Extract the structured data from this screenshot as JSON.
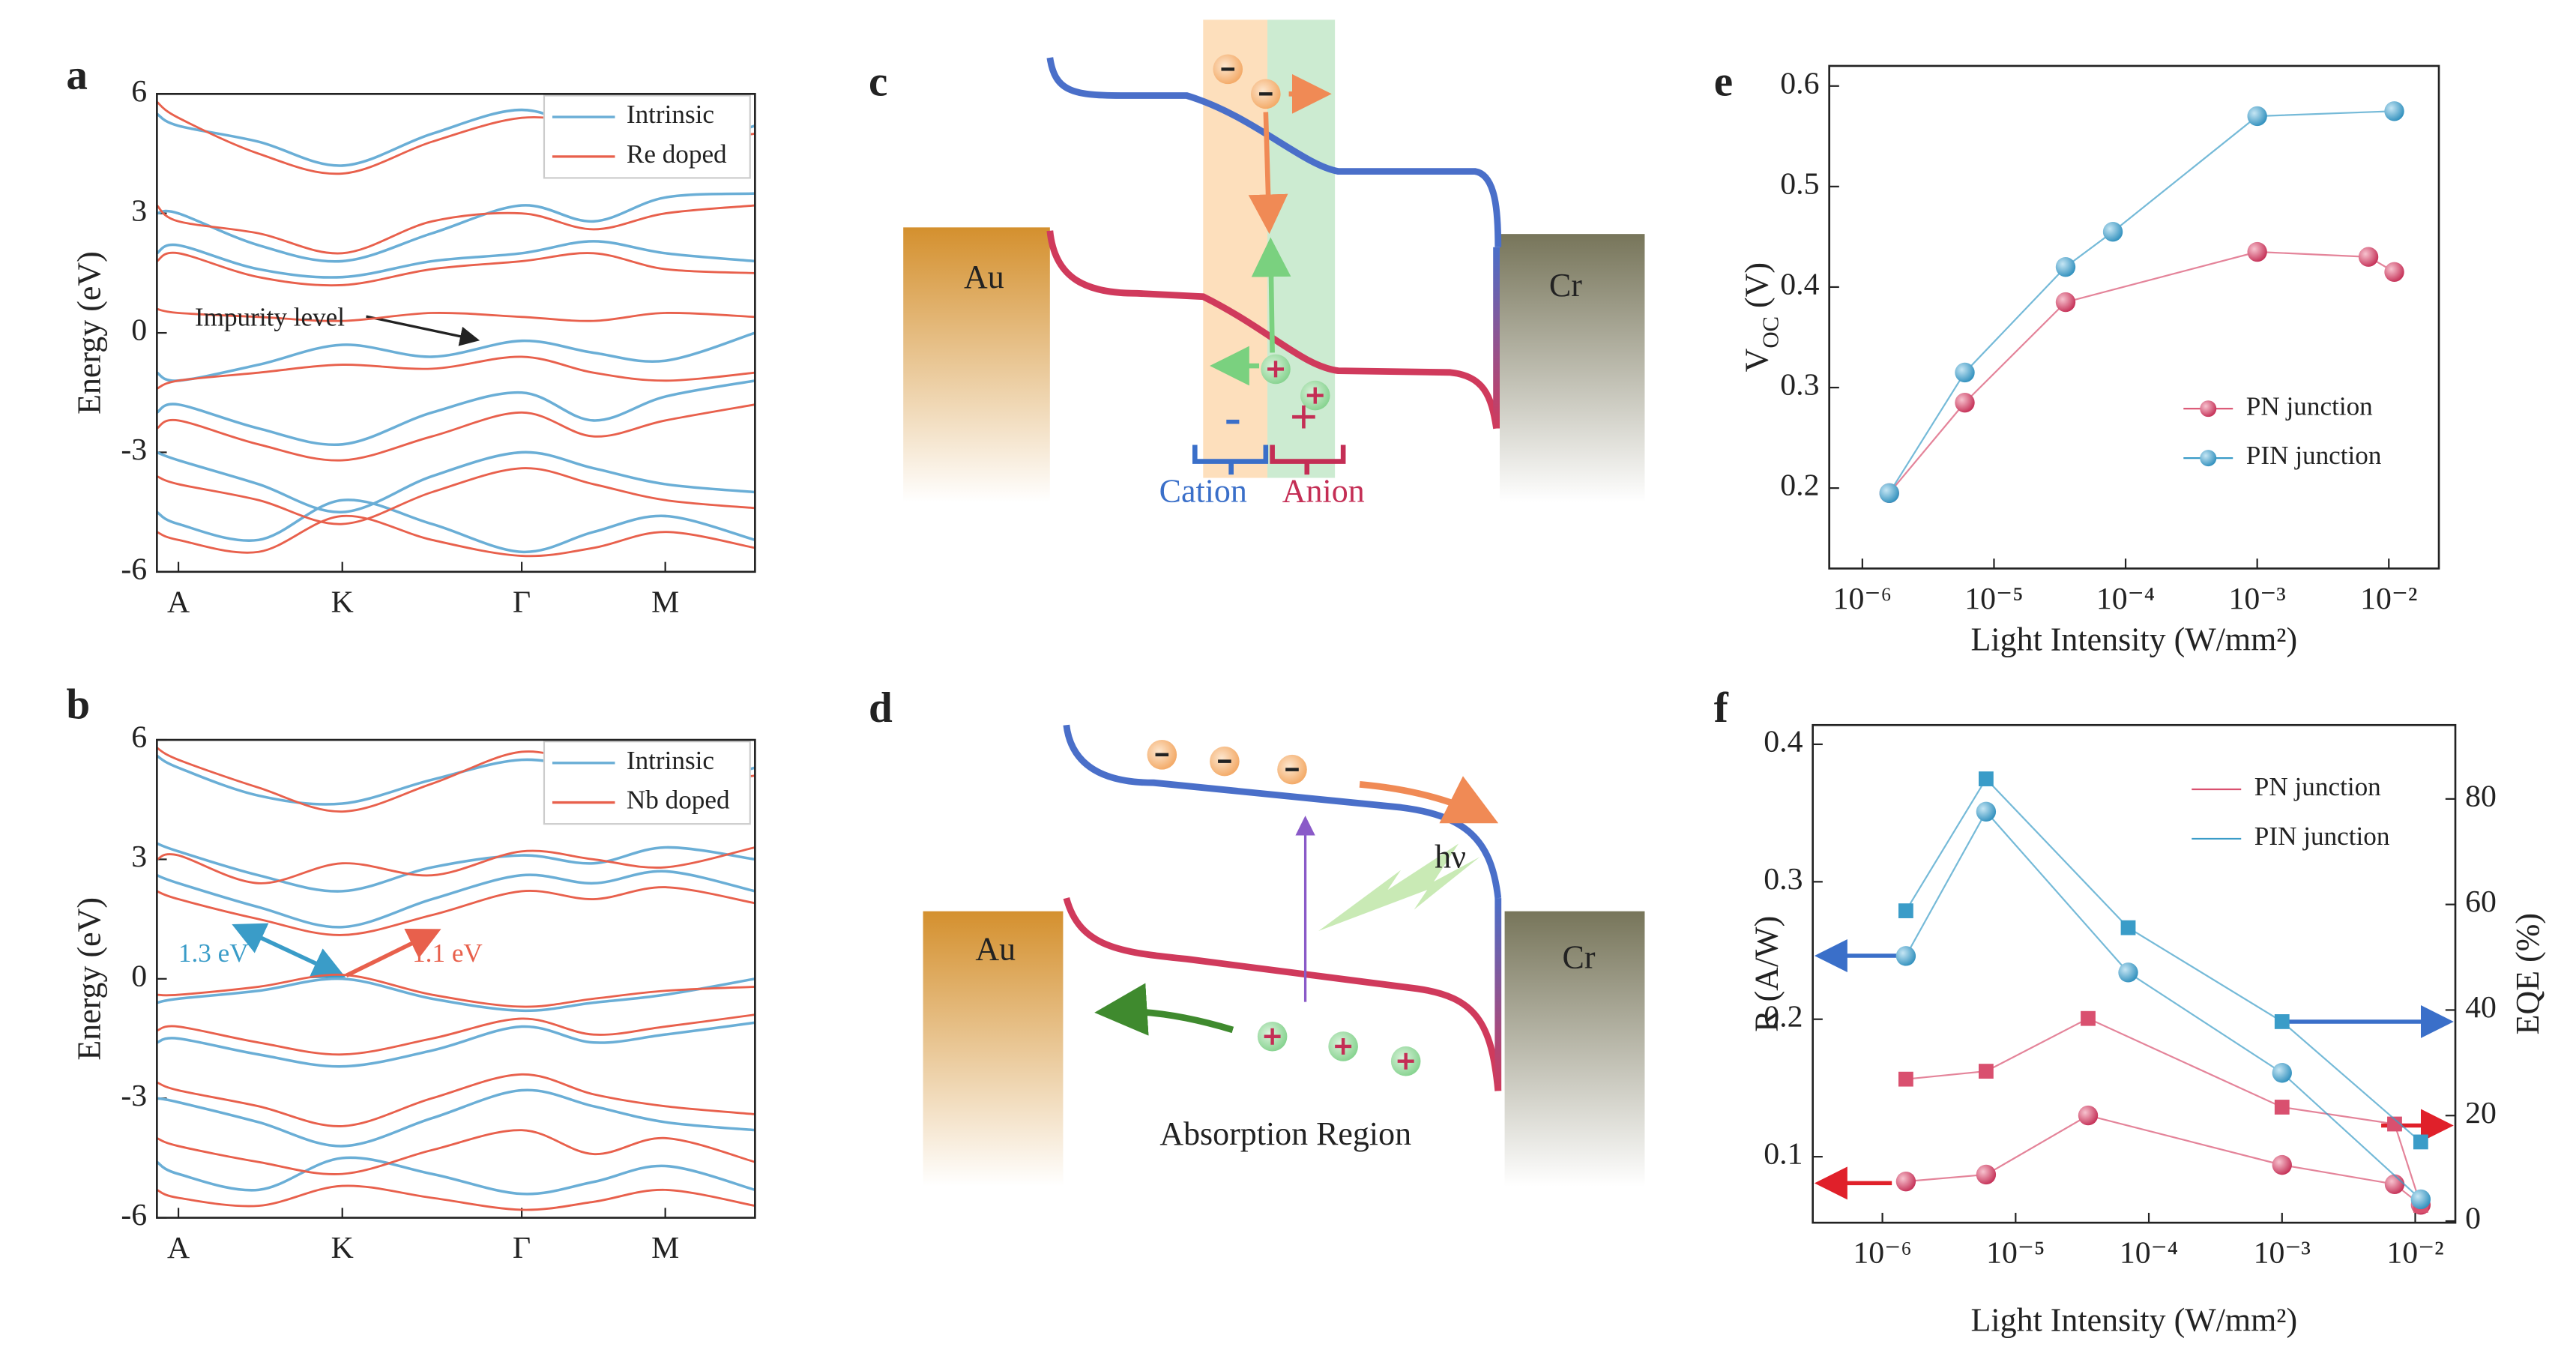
{
  "chart_data": [
    {
      "label": "a",
      "type": "bands",
      "ylabel": "Energy (eV)",
      "ylim": [
        -6,
        6
      ],
      "yticks": [
        -6,
        -3,
        0,
        3,
        6
      ],
      "xlim": [
        0,
        1
      ],
      "xticks": [
        {
          "value": 0.036,
          "label": "A"
        },
        {
          "value": 0.31,
          "label": "K"
        },
        {
          "value": 0.61,
          "label": "Γ"
        },
        {
          "value": 0.85,
          "label": "M"
        }
      ],
      "x": [
        0,
        0.036,
        0.17,
        0.31,
        0.46,
        0.61,
        0.73,
        0.85,
        1
      ],
      "legend": "upper right",
      "series": [
        {
          "name": "Intrinsic",
          "color": "#6aaed6",
          "bands": [
            [
              5.5,
              5.2,
              4.8,
              4.2,
              5.0,
              5.6,
              5.0,
              4.6,
              5.2
            ],
            [
              3.0,
              3.0,
              2.2,
              1.8,
              2.5,
              3.2,
              2.8,
              3.4,
              3.5
            ],
            [
              2.0,
              2.2,
              1.6,
              1.4,
              1.8,
              2.0,
              2.3,
              2.0,
              1.8
            ],
            [
              -1.0,
              -1.2,
              -0.8,
              -0.3,
              -0.6,
              -0.2,
              -0.5,
              -0.7,
              0.0
            ],
            [
              -2.0,
              -1.8,
              -2.4,
              -2.8,
              -2.0,
              -1.5,
              -2.2,
              -1.6,
              -1.2
            ],
            [
              -3.0,
              -3.2,
              -3.8,
              -4.5,
              -3.6,
              -3.0,
              -3.4,
              -3.8,
              -4.0
            ],
            [
              -4.5,
              -4.8,
              -5.2,
              -4.2,
              -4.8,
              -5.5,
              -5.0,
              -4.6,
              -5.2
            ]
          ]
        },
        {
          "name": "Re doped",
          "color": "#e8604c",
          "bands": [
            [
              5.8,
              5.4,
              4.5,
              4.0,
              4.8,
              5.4,
              5.2,
              4.8,
              5.0
            ],
            [
              3.2,
              2.8,
              2.5,
              2.0,
              2.8,
              3.0,
              2.6,
              3.0,
              3.2
            ],
            [
              1.8,
              2.0,
              1.4,
              1.2,
              1.6,
              1.8,
              2.0,
              1.6,
              1.5
            ],
            [
              0.6,
              0.5,
              0.4,
              0.3,
              0.5,
              0.4,
              0.3,
              0.5,
              0.4
            ],
            [
              -1.4,
              -1.2,
              -1.0,
              -0.8,
              -0.9,
              -0.6,
              -1.0,
              -1.2,
              -1.0
            ],
            [
              -2.4,
              -2.2,
              -2.8,
              -3.2,
              -2.6,
              -2.0,
              -2.6,
              -2.2,
              -1.8
            ],
            [
              -3.6,
              -3.8,
              -4.2,
              -4.8,
              -4.0,
              -3.4,
              -3.8,
              -4.2,
              -4.4
            ],
            [
              -5.0,
              -5.2,
              -5.5,
              -4.6,
              -5.2,
              -5.6,
              -5.4,
              -5.0,
              -5.4
            ]
          ]
        }
      ],
      "annotations": [
        "Impurity level"
      ]
    },
    {
      "label": "b",
      "type": "bands",
      "ylabel": "Energy (eV)",
      "ylim": [
        -6,
        6
      ],
      "yticks": [
        -6,
        -3,
        0,
        3,
        6
      ],
      "xlim": [
        0,
        1
      ],
      "xticks": [
        {
          "value": 0.036,
          "label": "A"
        },
        {
          "value": 0.31,
          "label": "K"
        },
        {
          "value": 0.61,
          "label": "Γ"
        },
        {
          "value": 0.85,
          "label": "M"
        }
      ],
      "x": [
        0,
        0.036,
        0.17,
        0.31,
        0.46,
        0.61,
        0.73,
        0.85,
        1
      ],
      "legend": "upper right",
      "series": [
        {
          "name": "Intrinsic",
          "color": "#6aaed6",
          "bands": [
            [
              5.6,
              5.3,
              4.6,
              4.4,
              5.0,
              5.5,
              5.2,
              4.8,
              5.3
            ],
            [
              3.4,
              3.2,
              2.6,
              2.2,
              2.8,
              3.1,
              2.9,
              3.3,
              3.0
            ],
            [
              2.6,
              2.4,
              1.8,
              1.3,
              2.0,
              2.6,
              2.4,
              2.7,
              2.2
            ],
            [
              -0.6,
              -0.5,
              -0.3,
              0.0,
              -0.5,
              -0.8,
              -0.6,
              -0.4,
              0.0
            ],
            [
              -1.6,
              -1.5,
              -1.9,
              -2.2,
              -1.8,
              -1.2,
              -1.6,
              -1.4,
              -1.1
            ],
            [
              -3.0,
              -3.1,
              -3.6,
              -4.2,
              -3.5,
              -2.8,
              -3.2,
              -3.6,
              -3.8
            ],
            [
              -4.6,
              -4.9,
              -5.3,
              -4.5,
              -4.9,
              -5.4,
              -5.1,
              -4.7,
              -5.3
            ]
          ]
        },
        {
          "name": "Nb doped",
          "color": "#e8604c",
          "bands": [
            [
              5.8,
              5.5,
              4.8,
              4.2,
              4.9,
              5.7,
              5.3,
              4.9,
              5.1
            ],
            [
              3.0,
              3.1,
              2.4,
              2.9,
              2.6,
              3.2,
              3.0,
              2.8,
              3.3
            ],
            [
              2.2,
              2.0,
              1.5,
              1.1,
              1.6,
              2.2,
              2.0,
              2.3,
              1.9
            ],
            [
              -0.4,
              -0.4,
              -0.2,
              0.1,
              -0.4,
              -0.7,
              -0.5,
              -0.3,
              -0.2
            ],
            [
              -1.3,
              -1.2,
              -1.6,
              -1.9,
              -1.5,
              -1.0,
              -1.4,
              -1.2,
              -0.9
            ],
            [
              -2.6,
              -2.8,
              -3.2,
              -3.7,
              -3.0,
              -2.4,
              -2.9,
              -3.2,
              -3.4
            ],
            [
              -4.0,
              -4.2,
              -4.6,
              -4.9,
              -4.3,
              -3.8,
              -4.4,
              -4.0,
              -4.6
            ],
            [
              -5.3,
              -5.5,
              -5.7,
              -5.2,
              -5.5,
              -5.8,
              -5.6,
              -5.3,
              -5.7
            ]
          ]
        }
      ],
      "annotations": [
        "1.3 eV",
        "1.1 eV"
      ]
    },
    {
      "label": "e",
      "type": "line",
      "xlog": true,
      "ylabel": {
        "main": "V",
        "sub": "OC",
        "unit": " (V)"
      },
      "xlabel": "Light Intensity (W/mm²)",
      "xlim": [
        5.6e-07,
        0.024
      ],
      "xticks": [
        {
          "value": 1e-06,
          "label": "10⁻⁶"
        },
        {
          "value": 1e-05,
          "label": "10⁻⁵"
        },
        {
          "value": 0.0001,
          "label": "10⁻⁴"
        },
        {
          "value": 0.001,
          "label": "10⁻³"
        },
        {
          "value": 0.01,
          "label": "10⁻²"
        }
      ],
      "ylim": [
        0.12,
        0.62
      ],
      "yticks": [
        0.2,
        0.3,
        0.4,
        0.5,
        0.6
      ],
      "legend": "lower right",
      "series": [
        {
          "name": "PN junction",
          "color": "#d9506f",
          "x": [
            1.6e-06,
            6e-06,
            3.5e-05,
            0.001,
            0.007,
            0.011
          ],
          "values": [
            0.195,
            0.285,
            0.385,
            0.435,
            0.43,
            0.415
          ]
        },
        {
          "name": "PIN junction",
          "color": "#3a9cc8",
          "x": [
            1.6e-06,
            6e-06,
            3.5e-05,
            8e-05,
            0.001,
            0.011
          ],
          "values": [
            0.195,
            0.315,
            0.42,
            0.455,
            0.57,
            0.575
          ]
        }
      ]
    },
    {
      "label": "f",
      "type": "line",
      "xlog": true,
      "ylabel": "R (A/W)",
      "y2label": "EQE (%)",
      "xlabel": "Light Intensity (W/mm²)",
      "xlim": [
        3e-07,
        0.02
      ],
      "xticks": [
        {
          "value": 1e-06,
          "label": "10⁻⁶"
        },
        {
          "value": 1e-05,
          "label": "10⁻⁵"
        },
        {
          "value": 0.0001,
          "label": "10⁻⁴"
        },
        {
          "value": 0.001,
          "label": "10⁻³"
        },
        {
          "value": 0.01,
          "label": "10⁻²"
        }
      ],
      "ylim": [
        0.052,
        0.414
      ],
      "yticks": [
        0.1,
        0.2,
        0.3,
        0.4
      ],
      "y2lim": [
        -0.3,
        94
      ],
      "y2ticks": [
        0,
        20,
        40,
        60,
        80
      ],
      "legend": "upper right",
      "series": [
        {
          "name": "PN junction",
          "color": "#d9506f",
          "x": [
            1.5e-06,
            6e-06,
            3.5e-05,
            0.001,
            0.007,
            0.011
          ],
          "values": [
            0.082,
            0.087,
            0.13,
            0.094,
            0.08,
            0.065
          ],
          "y2_values": [
            26.9,
            28.4,
            38.4,
            21.6,
            18.4,
            3
          ]
        },
        {
          "name": "PIN junction",
          "color": "#3a9cc8",
          "x": [
            1.5e-06,
            6e-06,
            7e-05,
            0.001,
            0.011
          ],
          "values": [
            0.246,
            0.351,
            0.234,
            0.161,
            0.069
          ],
          "y2_values": [
            58.8,
            83.8,
            55.6,
            37.8,
            15
          ]
        }
      ]
    }
  ],
  "diagrams": [
    {
      "label": "c",
      "left": "Au",
      "right": "Cr",
      "minus": "-",
      "plus": "+",
      "cation": "Cation",
      "anion": "Anion"
    },
    {
      "label": "d",
      "left": "Au",
      "right": "Cr",
      "photon": "hν",
      "region": "Absorption Region"
    }
  ]
}
